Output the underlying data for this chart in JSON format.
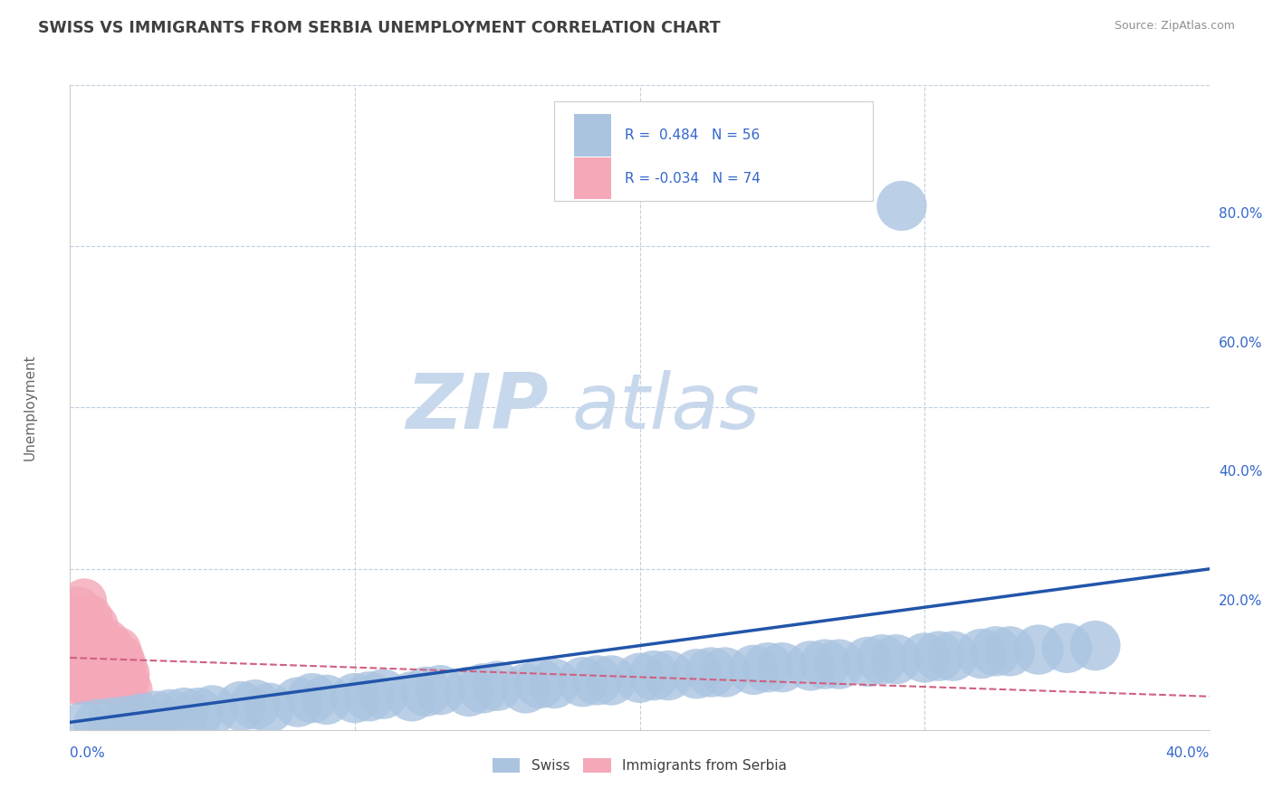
{
  "title": "SWISS VS IMMIGRANTS FROM SERBIA UNEMPLOYMENT CORRELATION CHART",
  "source": "Source: ZipAtlas.com",
  "watermark_zip": "ZIP",
  "watermark_atlas": "atlas",
  "ylabel_label": "Unemployment",
  "xlim": [
    0.0,
    0.4
  ],
  "ylim": [
    0.0,
    0.8
  ],
  "swiss_R": 0.484,
  "swiss_N": 56,
  "serbia_R": -0.034,
  "serbia_N": 74,
  "swiss_color": "#aac4e0",
  "serbia_color": "#f4a8b8",
  "swiss_line_color": "#2255aa",
  "serbia_line_color": "#d06080",
  "legend_swiss": "Swiss",
  "legend_serbia": "Immigrants from Serbia",
  "background_color": "#ffffff",
  "grid_color": "#c0d0e0",
  "title_color": "#404040",
  "source_color": "#909090",
  "label_color": "#3366cc",
  "swiss_x": [
    0.005,
    0.01,
    0.015,
    0.02,
    0.025,
    0.03,
    0.035,
    0.04,
    0.05,
    0.06,
    0.07,
    0.08,
    0.09,
    0.1,
    0.11,
    0.12,
    0.13,
    0.14,
    0.15,
    0.16,
    0.17,
    0.18,
    0.19,
    0.2,
    0.21,
    0.22,
    0.23,
    0.24,
    0.25,
    0.26,
    0.27,
    0.28,
    0.29,
    0.3,
    0.31,
    0.32,
    0.33,
    0.34,
    0.35,
    0.36,
    0.045,
    0.065,
    0.085,
    0.105,
    0.125,
    0.145,
    0.165,
    0.185,
    0.205,
    0.225,
    0.245,
    0.265,
    0.285,
    0.305,
    0.325,
    0.292
  ],
  "swiss_y": [
    0.005,
    0.008,
    0.01,
    0.012,
    0.015,
    0.018,
    0.02,
    0.022,
    0.025,
    0.03,
    0.028,
    0.035,
    0.038,
    0.04,
    0.045,
    0.042,
    0.05,
    0.048,
    0.055,
    0.052,
    0.058,
    0.06,
    0.062,
    0.065,
    0.068,
    0.07,
    0.072,
    0.075,
    0.078,
    0.08,
    0.082,
    0.085,
    0.088,
    0.09,
    0.092,
    0.095,
    0.098,
    0.1,
    0.102,
    0.105,
    0.022,
    0.032,
    0.04,
    0.042,
    0.048,
    0.052,
    0.058,
    0.062,
    0.068,
    0.072,
    0.078,
    0.082,
    0.088,
    0.092,
    0.098,
    0.65
  ],
  "serbia_x": [
    0.001,
    0.002,
    0.002,
    0.003,
    0.003,
    0.004,
    0.004,
    0.005,
    0.005,
    0.006,
    0.006,
    0.007,
    0.007,
    0.008,
    0.008,
    0.009,
    0.009,
    0.01,
    0.01,
    0.011,
    0.011,
    0.012,
    0.012,
    0.013,
    0.013,
    0.014,
    0.014,
    0.015,
    0.015,
    0.016,
    0.001,
    0.002,
    0.003,
    0.004,
    0.005,
    0.006,
    0.007,
    0.008,
    0.009,
    0.01,
    0.011,
    0.012,
    0.013,
    0.014,
    0.015,
    0.016,
    0.017,
    0.018,
    0.019,
    0.02,
    0.002,
    0.003,
    0.004,
    0.005,
    0.006,
    0.007,
    0.008,
    0.009,
    0.01,
    0.011,
    0.012,
    0.013,
    0.014,
    0.015,
    0.016,
    0.017,
    0.018,
    0.019,
    0.02,
    0.021,
    0.003,
    0.005,
    0.007,
    0.009
  ],
  "serbia_y": [
    0.08,
    0.1,
    0.07,
    0.12,
    0.09,
    0.11,
    0.08,
    0.13,
    0.07,
    0.1,
    0.09,
    0.11,
    0.08,
    0.12,
    0.07,
    0.1,
    0.09,
    0.08,
    0.11,
    0.07,
    0.1,
    0.09,
    0.08,
    0.07,
    0.1,
    0.09,
    0.08,
    0.07,
    0.1,
    0.09,
    0.14,
    0.13,
    0.12,
    0.11,
    0.13,
    0.12,
    0.11,
    0.1,
    0.12,
    0.11,
    0.1,
    0.09,
    0.11,
    0.1,
    0.09,
    0.08,
    0.1,
    0.09,
    0.08,
    0.07,
    0.06,
    0.07,
    0.06,
    0.07,
    0.06,
    0.07,
    0.06,
    0.07,
    0.06,
    0.07,
    0.06,
    0.07,
    0.06,
    0.07,
    0.06,
    0.07,
    0.06,
    0.05,
    0.06,
    0.05,
    0.15,
    0.16,
    0.14,
    0.13
  ]
}
